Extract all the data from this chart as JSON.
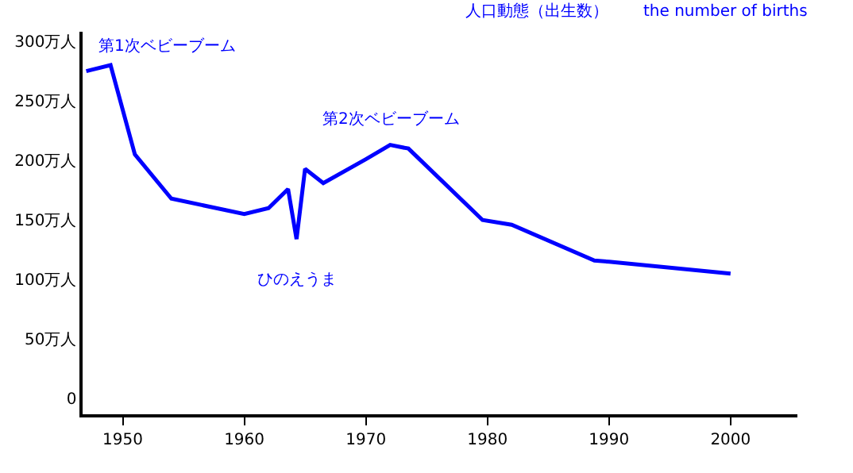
{
  "chart_data": {
    "type": "line",
    "title": "人口動態（出生数）",
    "subtitle": "the number of births",
    "x": [
      1947,
      1949,
      1951,
      1954,
      1960,
      1962,
      1963.6,
      1964.3,
      1965,
      1966.5,
      1970,
      1972,
      1973.5,
      1979.6,
      1982,
      1988.8,
      1990,
      2000
    ],
    "series": [
      {
        "color": "#0000ff",
        "values": [
          275,
          280,
          205,
          168,
          155,
          160,
          176,
          134,
          193,
          181,
          201,
          213,
          210,
          150,
          146,
          116,
          115,
          105
        ]
      }
    ],
    "xlim": [
      1946.7,
      2005.5
    ],
    "xticks": [
      1950,
      1960,
      1970,
      1980,
      1990,
      2000
    ],
    "ylim": [
      -13,
      308
    ],
    "yticks": [
      0,
      {
        "value": 50,
        "label": "50万人"
      },
      {
        "value": 100,
        "label": "100万人"
      },
      {
        "value": 150,
        "label": "150万人"
      },
      {
        "value": 200,
        "label": "200万人"
      },
      {
        "value": 250,
        "label": "250万人"
      },
      {
        "value": 300,
        "label": "300万人"
      }
    ],
    "annotations": [
      {
        "text": "第1次ベビーブーム",
        "x": 1949,
        "y": 280
      },
      {
        "text": "第2次ベビーブーム",
        "x": 1972,
        "y": 213
      },
      {
        "text": "ひのえうま",
        "x": 1964.3,
        "y": 134
      }
    ],
    "grid": false,
    "marker": "none",
    "line_style": "solid"
  }
}
